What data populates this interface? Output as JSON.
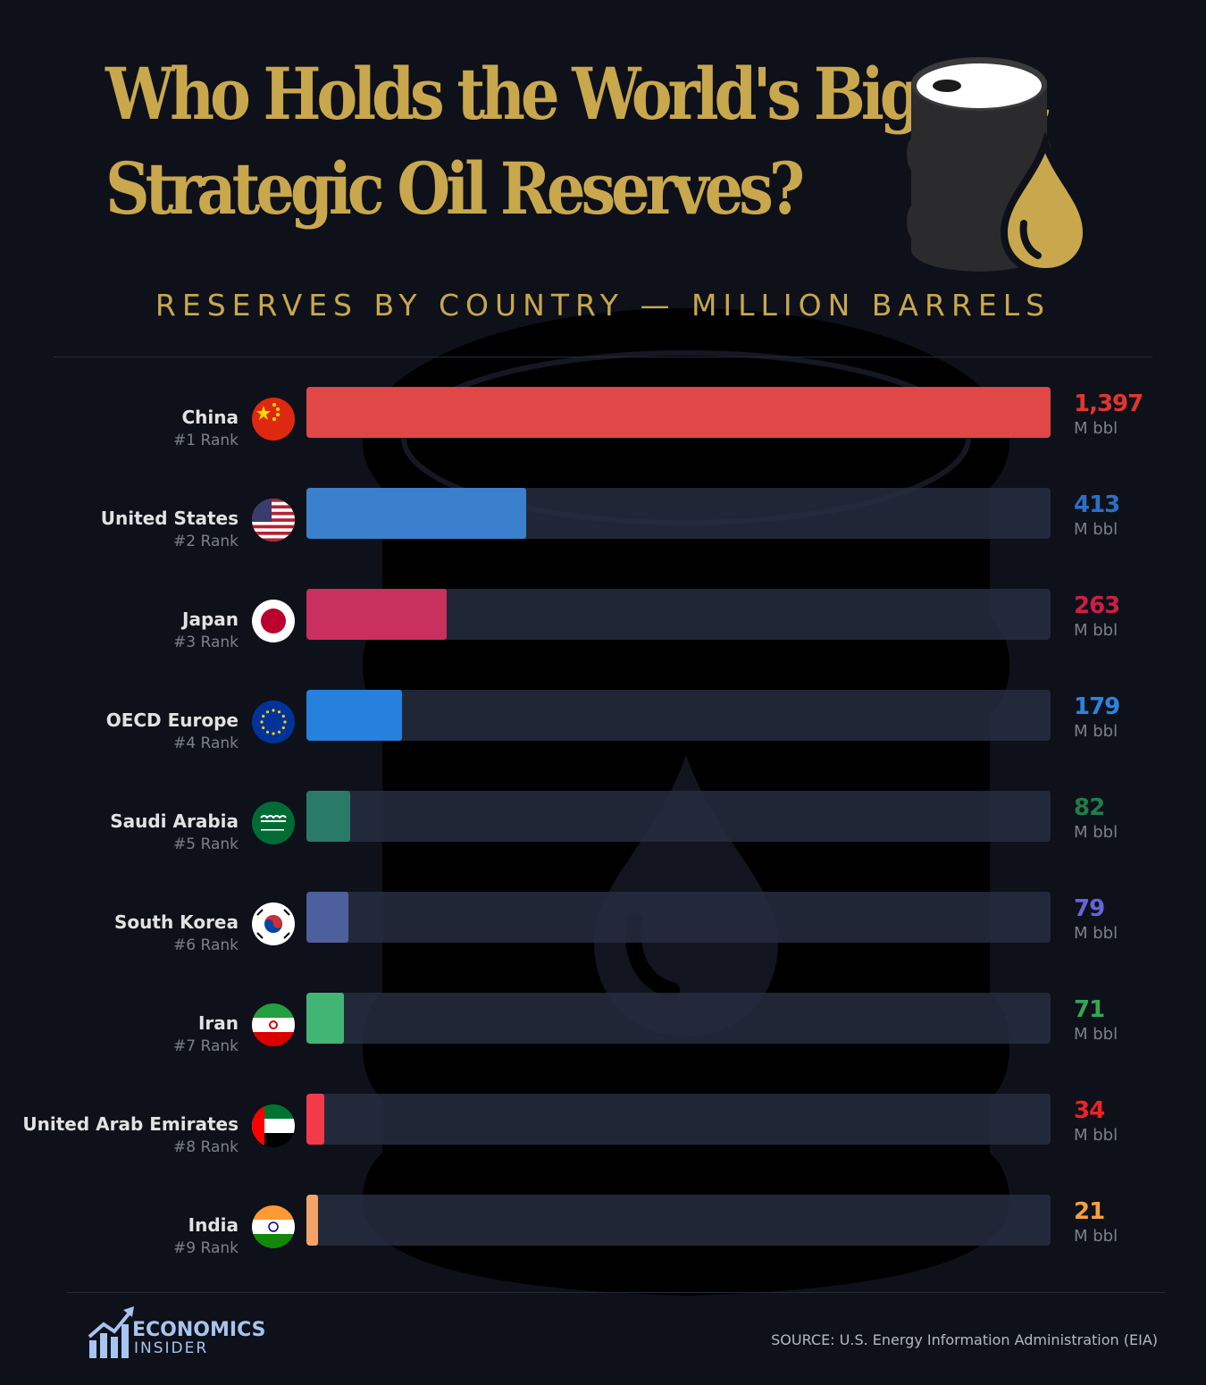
{
  "header": {
    "title_line1": "Who Holds the World's Biggest",
    "title_line2": "Strategic Oil Reserves?",
    "subtitle": "RESERVES BY COUNTRY — MILLION BARRELS",
    "icon": "oil-barrel-with-drop-icon"
  },
  "chart_data": {
    "type": "bar",
    "orientation": "horizontal",
    "xlim": [
      0,
      1397
    ],
    "unit_label": "M bbl",
    "grid": false,
    "legend": "none",
    "rows": [
      {
        "name": "China",
        "rank": "#1 Rank",
        "value": 1397,
        "value_label": "1,397",
        "color": "#e04747",
        "value_color": "#e2352e",
        "flag": "china"
      },
      {
        "name": "United States",
        "rank": "#2 Rank",
        "value": 413,
        "value_label": "413",
        "color": "#3a80cc",
        "value_color": "#2d6fc4",
        "flag": "usa"
      },
      {
        "name": "Japan",
        "rank": "#3 Rank",
        "value": 263,
        "value_label": "263",
        "color": "#c8305e",
        "value_color": "#cc1f45",
        "flag": "japan"
      },
      {
        "name": "OECD Europe",
        "rank": "#4 Rank",
        "value": 179,
        "value_label": "179",
        "color": "#2680dc",
        "value_color": "#2c84e0",
        "flag": "eu"
      },
      {
        "name": "Saudi Arabia",
        "rank": "#5 Rank",
        "value": 82,
        "value_label": "82",
        "color": "#2a7a68",
        "value_color": "#1f7d4a",
        "flag": "saudi"
      },
      {
        "name": "South Korea",
        "rank": "#6 Rank",
        "value": 79,
        "value_label": "79",
        "color": "#4e5f9e",
        "value_color": "#6864d8",
        "flag": "korea"
      },
      {
        "name": "Iran",
        "rank": "#7 Rank",
        "value": 71,
        "value_label": "71",
        "color": "#42b474",
        "value_color": "#34a65a",
        "flag": "iran"
      },
      {
        "name": "United Arab Emirates",
        "rank": "#8 Rank",
        "value": 34,
        "value_label": "34",
        "color": "#f23a4a",
        "value_color": "#ee2226",
        "flag": "uae"
      },
      {
        "name": "India",
        "rank": "#9 Rank",
        "value": 21,
        "value_label": "21",
        "color": "#f6a36a",
        "value_color": "#f6a040",
        "flag": "india"
      }
    ]
  },
  "footer": {
    "brand_line1": "ECONOMICS",
    "brand_line2": "INSIDER",
    "brand_icon": "rising-bar-chart-arrow-icon",
    "source": "SOURCE: U.S. Energy Information Administration (EIA)"
  }
}
